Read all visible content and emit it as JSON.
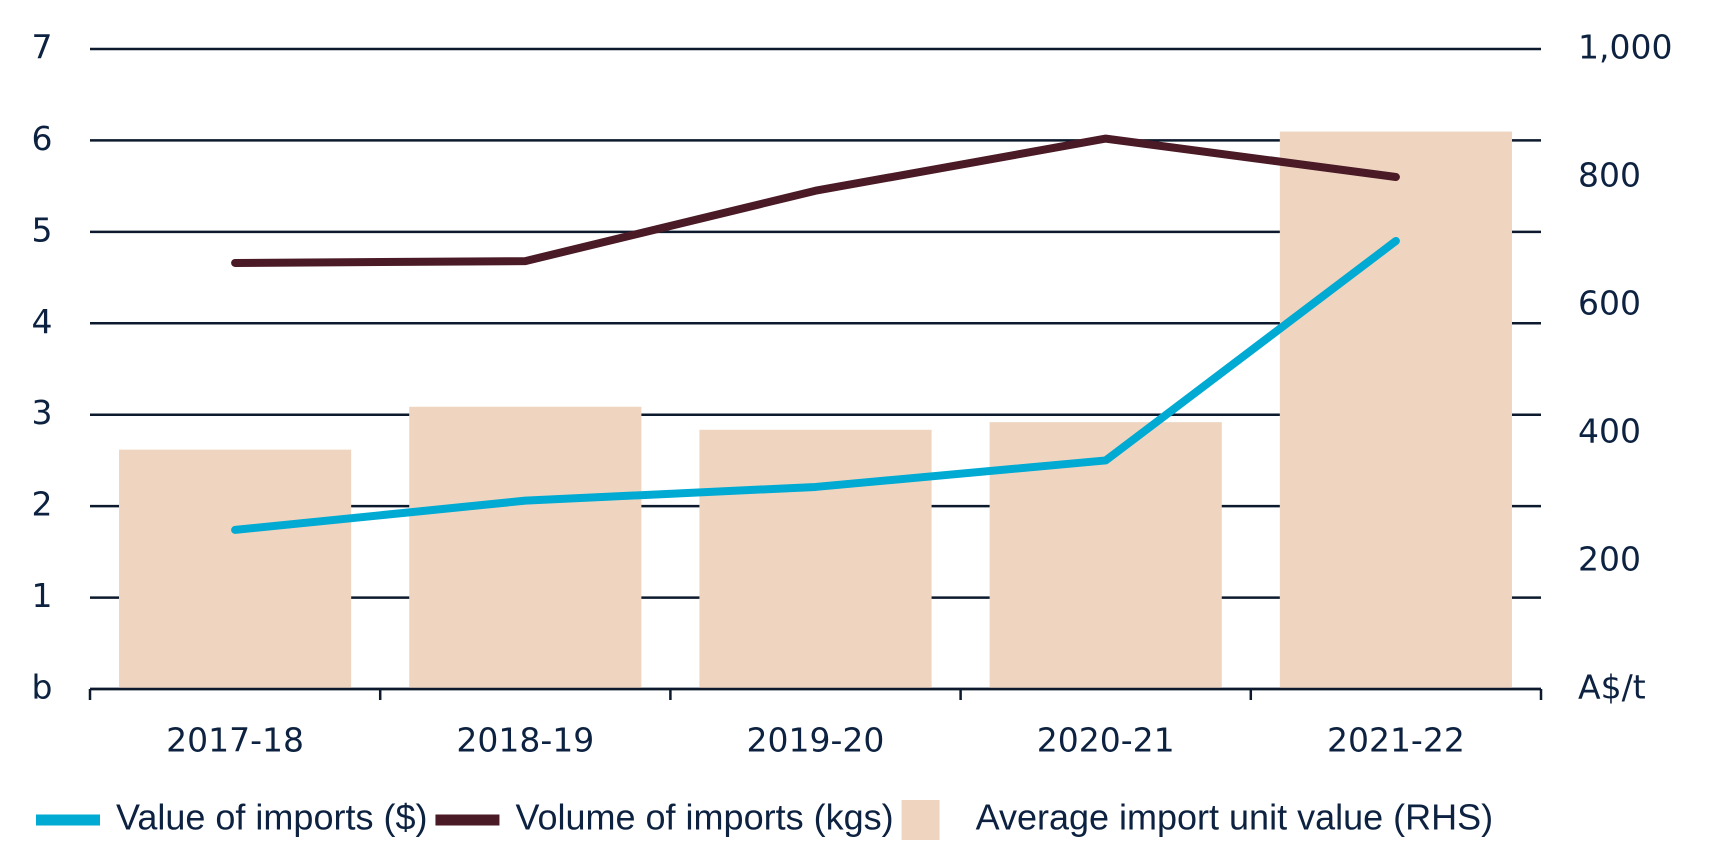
{
  "chart_data": {
    "type": "bar",
    "categories": [
      "2017-18",
      "2018-19",
      "2019-20",
      "2020-21",
      "2021-22"
    ],
    "series": [
      {
        "name": "Value of imports ($)",
        "type": "line",
        "color": "#00aad2",
        "values": [
          1.74,
          2.06,
          2.21,
          2.5,
          4.9
        ]
      },
      {
        "name": "Volume of imports (kgs)",
        "type": "line",
        "color": "#4a1a26",
        "values": [
          4.66,
          4.68,
          5.45,
          6.02,
          5.6
        ]
      },
      {
        "name": "Average import unit value (RHS)",
        "type": "bar",
        "color": "#efd5c0",
        "axis": "y2",
        "values": [
          374,
          441,
          405,
          417,
          871
        ]
      }
    ],
    "ylim": [
      0,
      7
    ],
    "yticks": [
      {
        "value": 0,
        "label": "b"
      },
      1,
      2,
      3,
      4,
      5,
      6,
      7
    ],
    "y2lim": [
      0,
      1000
    ],
    "y2ticks": [
      {
        "value": 0,
        "label": "A$/t"
      },
      200,
      400,
      600,
      800,
      {
        "value": 1000,
        "label": "1,000"
      }
    ],
    "grid": true
  }
}
